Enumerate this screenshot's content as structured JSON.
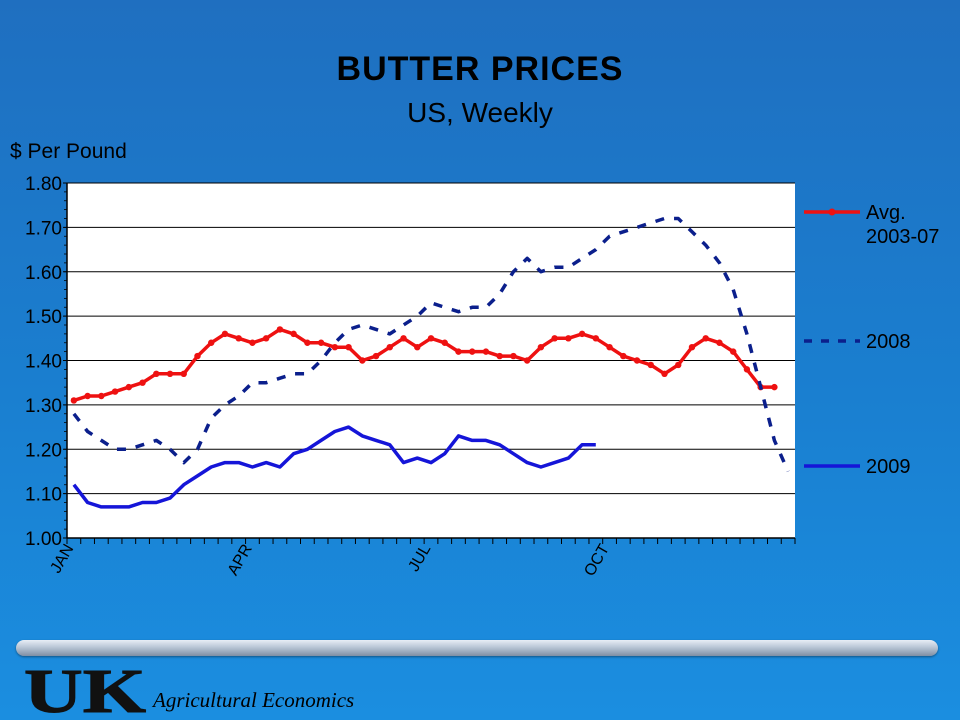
{
  "chart_data": {
    "type": "line",
    "title": "BUTTER PRICES",
    "subtitle": "US, Weekly",
    "ylabel": "$ Per Pound",
    "ylim": [
      1.0,
      1.8
    ],
    "yticks": [
      "1.00",
      "1.10",
      "1.20",
      "1.30",
      "1.40",
      "1.50",
      "1.60",
      "1.70",
      "1.80"
    ],
    "xtick_labels": [
      {
        "label": "JAN",
        "week": 0
      },
      {
        "label": "APR",
        "week": 13
      },
      {
        "label": "JUL",
        "week": 26
      },
      {
        "label": "OCT",
        "week": 39
      }
    ],
    "grid": true,
    "legend_position": "right",
    "series": [
      {
        "name": "Avg.\n2003-07",
        "style": "solid-marker",
        "color": "#ee1111",
        "values": [
          1.31,
          1.32,
          1.32,
          1.33,
          1.34,
          1.35,
          1.37,
          1.37,
          1.37,
          1.41,
          1.44,
          1.46,
          1.45,
          1.44,
          1.45,
          1.47,
          1.46,
          1.44,
          1.44,
          1.43,
          1.43,
          1.4,
          1.41,
          1.43,
          1.45,
          1.43,
          1.45,
          1.44,
          1.42,
          1.42,
          1.42,
          1.41,
          1.41,
          1.4,
          1.43,
          1.45,
          1.45,
          1.46,
          1.45,
          1.43,
          1.41,
          1.4,
          1.39,
          1.37,
          1.39,
          1.43,
          1.45,
          1.44,
          1.42,
          1.38,
          1.34,
          1.34
        ]
      },
      {
        "name": "2008",
        "style": "dashed",
        "color": "#0b1f8c",
        "values": [
          1.28,
          1.24,
          1.22,
          1.2,
          1.2,
          1.21,
          1.22,
          1.2,
          1.17,
          1.2,
          1.27,
          1.3,
          1.32,
          1.35,
          1.35,
          1.36,
          1.37,
          1.37,
          1.4,
          1.44,
          1.47,
          1.48,
          1.47,
          1.46,
          1.48,
          1.5,
          1.53,
          1.52,
          1.51,
          1.52,
          1.52,
          1.55,
          1.6,
          1.63,
          1.6,
          1.61,
          1.61,
          1.63,
          1.65,
          1.68,
          1.69,
          1.7,
          1.71,
          1.72,
          1.72,
          1.69,
          1.66,
          1.62,
          1.56,
          1.46,
          1.34,
          1.22,
          1.15
        ]
      },
      {
        "name": "2009",
        "style": "solid",
        "color": "#1515d8",
        "values": [
          1.12,
          1.08,
          1.07,
          1.07,
          1.07,
          1.08,
          1.08,
          1.09,
          1.12,
          1.14,
          1.16,
          1.17,
          1.17,
          1.16,
          1.17,
          1.16,
          1.19,
          1.2,
          1.22,
          1.24,
          1.25,
          1.23,
          1.22,
          1.21,
          1.17,
          1.18,
          1.17,
          1.19,
          1.23,
          1.22,
          1.22,
          1.21,
          1.19,
          1.17,
          1.16,
          1.17,
          1.18,
          1.21,
          1.21
        ]
      }
    ]
  },
  "footer": {
    "logo_text": "UK",
    "department": "Agricultural Economics"
  }
}
